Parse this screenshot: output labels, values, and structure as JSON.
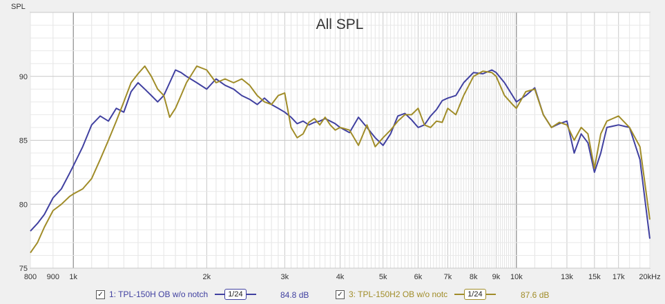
{
  "chart_data": {
    "type": "line",
    "title": "All SPL",
    "ylabel": "SPL",
    "xscale": "log",
    "xlim": [
      800,
      20000
    ],
    "ylim": [
      75,
      95
    ],
    "grid": true,
    "x_tick_labels": [
      "800",
      "900",
      "1k",
      "2k",
      "3k",
      "4k",
      "5k",
      "6k",
      "7k",
      "8k",
      "9k",
      "10k",
      "13k",
      "15k",
      "17k",
      "20kHz"
    ],
    "x_tick_values": [
      800,
      900,
      1000,
      2000,
      3000,
      4000,
      5000,
      6000,
      7000,
      8000,
      9000,
      10000,
      13000,
      15000,
      17000,
      20000
    ],
    "y_tick_labels": [
      "75",
      "80",
      "85",
      "90"
    ],
    "y_tick_values": [
      75,
      80,
      85,
      90
    ],
    "series": [
      {
        "name": "1: TPL-150H OB w/o notch",
        "color": "#4040a0",
        "smoothing": "1/24",
        "average": "84.8 dB",
        "x": [
          800,
          830,
          860,
          900,
          940,
          980,
          1000,
          1050,
          1100,
          1150,
          1200,
          1250,
          1300,
          1350,
          1400,
          1450,
          1500,
          1550,
          1600,
          1650,
          1700,
          1750,
          1800,
          1900,
          2000,
          2100,
          2200,
          2300,
          2400,
          2500,
          2600,
          2700,
          2800,
          2900,
          3000,
          3100,
          3200,
          3300,
          3400,
          3500,
          3600,
          3700,
          3800,
          3900,
          4000,
          4200,
          4400,
          4600,
          4800,
          5000,
          5200,
          5400,
          5600,
          5800,
          6000,
          6200,
          6400,
          6600,
          6800,
          7000,
          7300,
          7600,
          8000,
          8400,
          8800,
          9000,
          9400,
          9800,
          10000,
          10500,
          11000,
          11500,
          12000,
          12500,
          13000,
          13500,
          14000,
          14500,
          15000,
          15500,
          16000,
          17000,
          18000,
          19000,
          20000
        ],
        "y": [
          77.9,
          78.5,
          79.2,
          80.5,
          81.2,
          82.4,
          83.0,
          84.5,
          86.2,
          86.9,
          86.5,
          87.5,
          87.2,
          88.8,
          89.5,
          89.0,
          88.5,
          88.0,
          88.5,
          89.5,
          90.5,
          90.3,
          90.0,
          89.5,
          89.0,
          89.8,
          89.3,
          89.0,
          88.5,
          88.2,
          87.8,
          88.3,
          87.8,
          87.5,
          87.2,
          86.8,
          86.3,
          86.5,
          86.2,
          86.4,
          86.5,
          86.7,
          86.5,
          86.3,
          86.0,
          85.6,
          86.8,
          86.0,
          85.2,
          84.6,
          85.5,
          86.9,
          87.1,
          86.6,
          86.0,
          86.2,
          86.9,
          87.4,
          88.1,
          88.3,
          88.5,
          89.5,
          90.3,
          90.2,
          90.5,
          90.3,
          89.5,
          88.5,
          88.0,
          88.5,
          89.1,
          87.0,
          86.0,
          86.3,
          86.5,
          84.0,
          85.5,
          84.8,
          82.5,
          84.0,
          86.0,
          86.2,
          86.0,
          83.5,
          77.3
        ]
      },
      {
        "name": "3: TPL-150H2 OB w/o notc",
        "color": "#a08c28",
        "smoothing": "1/24",
        "average": "87.6 dB",
        "x": [
          800,
          830,
          860,
          900,
          940,
          980,
          1000,
          1050,
          1100,
          1150,
          1200,
          1250,
          1300,
          1350,
          1400,
          1450,
          1500,
          1550,
          1600,
          1650,
          1700,
          1750,
          1800,
          1900,
          2000,
          2100,
          2200,
          2300,
          2400,
          2500,
          2600,
          2700,
          2800,
          2900,
          3000,
          3100,
          3200,
          3300,
          3400,
          3500,
          3600,
          3700,
          3800,
          3900,
          4000,
          4200,
          4400,
          4600,
          4800,
          5000,
          5200,
          5400,
          5600,
          5800,
          6000,
          6200,
          6400,
          6600,
          6800,
          7000,
          7300,
          7600,
          8000,
          8400,
          8800,
          9000,
          9400,
          9800,
          10000,
          10500,
          11000,
          11500,
          12000,
          12500,
          13000,
          13500,
          14000,
          14500,
          15000,
          15500,
          16000,
          17000,
          18000,
          19000,
          20000
        ],
        "y": [
          76.2,
          77.0,
          78.2,
          79.5,
          80.0,
          80.6,
          80.8,
          81.2,
          82.0,
          83.5,
          85.0,
          86.5,
          88.0,
          89.5,
          90.2,
          90.8,
          90.0,
          89.0,
          88.5,
          86.8,
          87.5,
          88.5,
          89.5,
          90.8,
          90.5,
          89.5,
          89.8,
          89.5,
          89.8,
          89.3,
          88.5,
          88.0,
          87.8,
          88.5,
          88.7,
          86.0,
          85.2,
          85.5,
          86.4,
          86.7,
          86.2,
          86.8,
          86.2,
          85.8,
          86.0,
          85.8,
          84.6,
          86.2,
          84.5,
          85.2,
          85.8,
          86.5,
          87.0,
          87.0,
          87.5,
          86.2,
          86.0,
          86.5,
          86.4,
          87.5,
          87.0,
          88.5,
          90.0,
          90.4,
          90.3,
          90.0,
          88.5,
          87.8,
          87.5,
          88.8,
          89.0,
          87.0,
          86.0,
          86.4,
          86.2,
          85.0,
          86.0,
          85.5,
          82.8,
          85.5,
          86.5,
          86.9,
          86.0,
          84.5,
          78.8
        ]
      }
    ]
  }
}
